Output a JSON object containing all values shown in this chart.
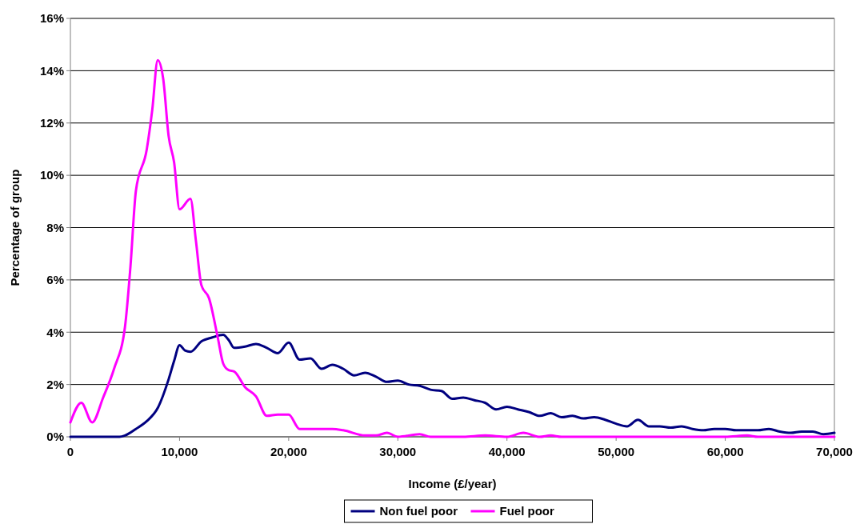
{
  "chart_data": {
    "type": "line",
    "xlabel": "Income (£/year)",
    "ylabel": "Percentage of group",
    "xlim": [
      0,
      70000
    ],
    "xticks": [
      {
        "value": 0,
        "label": "0"
      },
      {
        "value": 10000,
        "label": "10,000"
      },
      {
        "value": 20000,
        "label": "20,000"
      },
      {
        "value": 30000,
        "label": "30,000"
      },
      {
        "value": 40000,
        "label": "40,000"
      },
      {
        "value": 50000,
        "label": "50,000"
      },
      {
        "value": 60000,
        "label": "60,000"
      },
      {
        "value": 70000,
        "label": "70,000"
      }
    ],
    "ylim": [
      0,
      16
    ],
    "yticks": [
      {
        "value": 0,
        "label": "0%"
      },
      {
        "value": 2,
        "label": "2%"
      },
      {
        "value": 4,
        "label": "4%"
      },
      {
        "value": 6,
        "label": "6%"
      },
      {
        "value": 8,
        "label": "8%"
      },
      {
        "value": 10,
        "label": "10%"
      },
      {
        "value": 12,
        "label": "12%"
      },
      {
        "value": 14,
        "label": "14%"
      },
      {
        "value": 16,
        "label": "16%"
      }
    ],
    "grid": "y",
    "legend": "bottom",
    "marker": "none",
    "line_style": "solid",
    "series": [
      {
        "name": "Non fuel poor",
        "color": "#000080",
        "x": [
          0,
          4500,
          5000,
          6000,
          7000,
          8000,
          9000,
          9500,
          10000,
          10500,
          11000,
          12000,
          13000,
          14000,
          14500,
          15000,
          16000,
          17000,
          18000,
          19000,
          20000,
          21000,
          22000,
          23000,
          24000,
          25000,
          26000,
          27000,
          28000,
          29000,
          30000,
          31000,
          32000,
          33000,
          34000,
          35000,
          36000,
          37000,
          38000,
          39000,
          40000,
          41000,
          42000,
          43000,
          44000,
          45000,
          46000,
          47000,
          48000,
          49000,
          50000,
          51000,
          52000,
          53000,
          54000,
          55000,
          56000,
          57000,
          58000,
          59000,
          60000,
          61000,
          62000,
          63000,
          64000,
          65000,
          66000,
          67000,
          68000,
          69000,
          70000
        ],
        "values": [
          0,
          0,
          0.05,
          0.3,
          0.6,
          1.1,
          2.2,
          2.9,
          3.5,
          3.3,
          3.25,
          3.65,
          3.8,
          3.9,
          3.7,
          3.4,
          3.45,
          3.55,
          3.4,
          3.2,
          3.6,
          2.95,
          3.0,
          2.6,
          2.75,
          2.6,
          2.35,
          2.45,
          2.3,
          2.1,
          2.15,
          2.0,
          1.95,
          1.8,
          1.75,
          1.45,
          1.5,
          1.4,
          1.3,
          1.05,
          1.15,
          1.05,
          0.95,
          0.8,
          0.9,
          0.75,
          0.8,
          0.7,
          0.75,
          0.65,
          0.5,
          0.4,
          0.65,
          0.4,
          0.4,
          0.35,
          0.4,
          0.3,
          0.25,
          0.3,
          0.3,
          0.25,
          0.25,
          0.25,
          0.3,
          0.2,
          0.15,
          0.2,
          0.2,
          0.1,
          0.15
        ]
      },
      {
        "name": "Fuel poor",
        "color": "#ff00ff",
        "x": [
          0,
          1000,
          2000,
          3000,
          4000,
          5000,
          5500,
          6000,
          7000,
          7500,
          8000,
          8500,
          9000,
          9500,
          10000,
          11000,
          11500,
          12000,
          12700,
          13500,
          14000,
          14500,
          15000,
          16000,
          17000,
          18000,
          19000,
          20000,
          21000,
          22000,
          24000,
          25000,
          27000,
          28000,
          29000,
          30000,
          32000,
          33000,
          36000,
          38000,
          40000,
          41500,
          43000,
          44000,
          45000,
          60000,
          62000,
          63000,
          70000
        ],
        "values": [
          0.55,
          1.3,
          0.55,
          1.5,
          2.6,
          4.2,
          6.5,
          9.4,
          11,
          12.5,
          14.4,
          13.7,
          11.5,
          10.5,
          8.7,
          9.1,
          7.5,
          5.8,
          5.3,
          3.8,
          2.8,
          2.55,
          2.5,
          1.9,
          1.55,
          0.8,
          0.85,
          0.85,
          0.3,
          0.3,
          0.3,
          0.25,
          0.05,
          0.05,
          0.15,
          0,
          0.1,
          0,
          0,
          0.05,
          0,
          0.15,
          0,
          0.05,
          0,
          0,
          0.05,
          0,
          0
        ]
      }
    ]
  }
}
